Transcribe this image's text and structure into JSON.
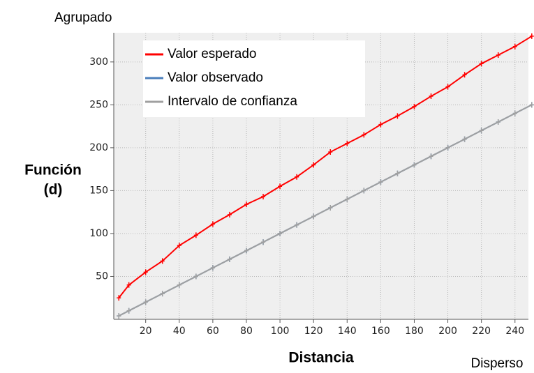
{
  "chart_data": {
    "type": "line",
    "annotations": [
      "Agrupado",
      "Disperso"
    ],
    "x_label": "Distancia",
    "y_label": [
      "Función",
      "(d)"
    ],
    "x": [
      4,
      10,
      20,
      30,
      40,
      50,
      60,
      70,
      80,
      90,
      100,
      110,
      120,
      130,
      140,
      150,
      160,
      170,
      180,
      190,
      200,
      210,
      220,
      230,
      240,
      250
    ],
    "series": [
      {
        "name": "Valor esperado",
        "color": "#ff0000",
        "values": [
          25,
          40,
          55,
          68,
          86,
          98,
          111,
          122,
          134,
          143,
          155,
          166,
          180,
          195,
          205,
          215,
          227,
          237,
          248,
          260,
          271,
          285,
          298,
          308,
          318,
          330
        ]
      },
      {
        "name": "Valor observado",
        "color": "#4a7ebb",
        "values": [
          4,
          10,
          20,
          30,
          40,
          50,
          60,
          70,
          80,
          90,
          100,
          110,
          120,
          130,
          140,
          150,
          160,
          170,
          180,
          190,
          200,
          210,
          220,
          230,
          240,
          250
        ]
      },
      {
        "name": "Intervalo de confianza",
        "color": "#a0a0a0",
        "values": [
          4,
          10,
          20,
          30,
          40,
          50,
          60,
          70,
          80,
          90,
          100,
          110,
          120,
          130,
          140,
          150,
          160,
          170,
          180,
          190,
          200,
          210,
          220,
          230,
          240,
          250
        ]
      }
    ],
    "xlim": [
      1,
      248
    ],
    "ylim": [
      0,
      334
    ],
    "xticks": [
      20,
      40,
      60,
      80,
      100,
      120,
      140,
      160,
      180,
      200,
      220,
      240
    ],
    "yticks": [
      50,
      100,
      150,
      200,
      250,
      300
    ],
    "grid": true,
    "legend": "upper left"
  }
}
